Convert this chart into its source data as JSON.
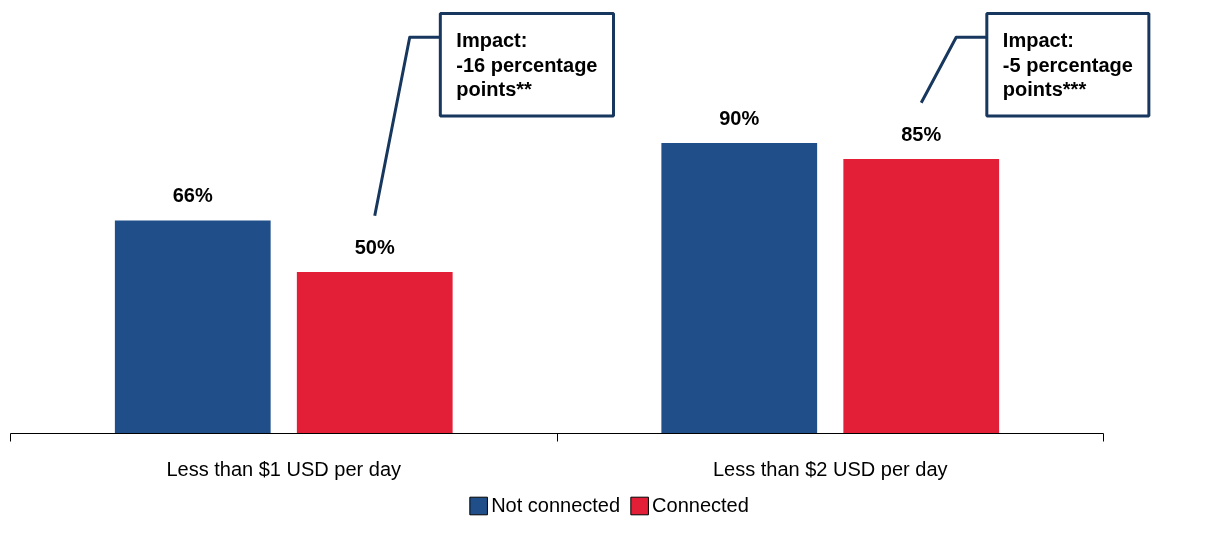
{
  "chart_data": {
    "type": "bar",
    "categories": [
      "Less than $1 USD per day",
      "Less than $2 USD per day"
    ],
    "series": [
      {
        "name": "Not connected",
        "color": "#1f4e89",
        "values": [
          66,
          90
        ],
        "value_labels": [
          "66%",
          "90%"
        ]
      },
      {
        "name": "Connected",
        "color": "#e31e37",
        "values": [
          50,
          85
        ],
        "value_labels": [
          "50%",
          "85%"
        ]
      }
    ],
    "grid": false,
    "legend": "bottom",
    "tick_labels": "x",
    "annotations": [
      "Impact:\n-16 percentage\npoints**",
      "Impact:\n-5 percentage\npoints***"
    ]
  }
}
